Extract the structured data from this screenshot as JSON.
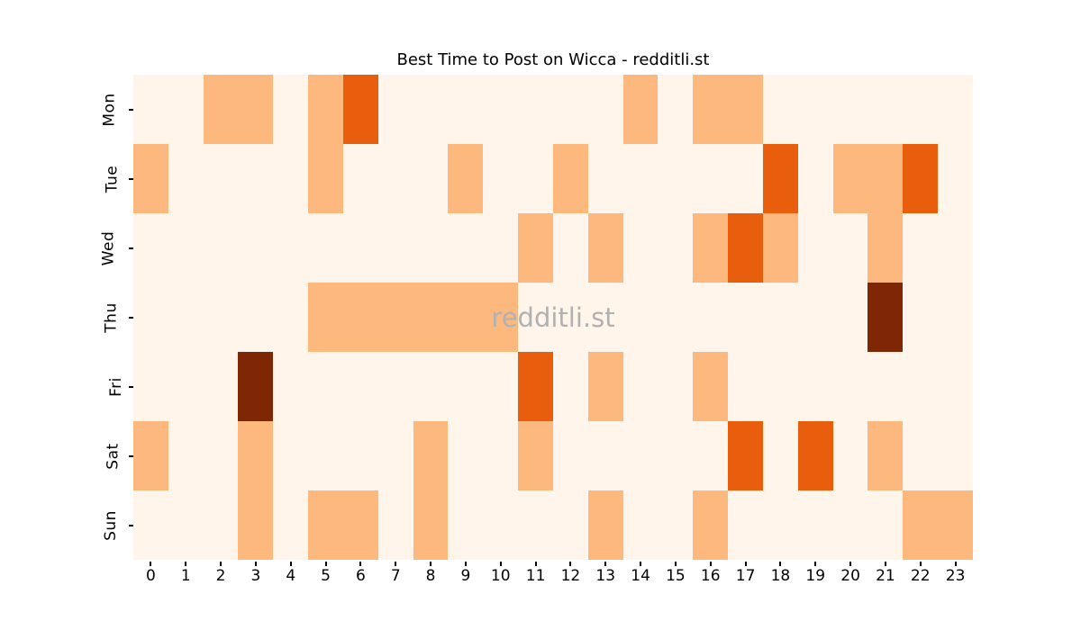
{
  "title": "Best Time to Post on Wicca - redditli.st",
  "watermark": "redditli.st",
  "chart_data": {
    "type": "heatmap",
    "title": "Best Time to Post on Wicca - redditli.st",
    "xlabel": "",
    "ylabel": "",
    "x": [
      "0",
      "1",
      "2",
      "3",
      "4",
      "5",
      "6",
      "7",
      "8",
      "9",
      "10",
      "11",
      "12",
      "13",
      "14",
      "15",
      "16",
      "17",
      "18",
      "19",
      "20",
      "21",
      "22",
      "23"
    ],
    "y": [
      "Mon",
      "Tue",
      "Wed",
      "Thu",
      "Fri",
      "Sat",
      "Sun"
    ],
    "values": [
      [
        0,
        0,
        1,
        1,
        0,
        1,
        2,
        0,
        0,
        0,
        0,
        0,
        0,
        0,
        1,
        0,
        1,
        1,
        0,
        0,
        0,
        0,
        0,
        0
      ],
      [
        1,
        0,
        0,
        0,
        0,
        1,
        0,
        0,
        0,
        1,
        0,
        0,
        1,
        0,
        0,
        0,
        0,
        0,
        2,
        0,
        1,
        1,
        2,
        0
      ],
      [
        0,
        0,
        0,
        0,
        0,
        0,
        0,
        0,
        0,
        0,
        0,
        1,
        0,
        1,
        0,
        0,
        1,
        2,
        1,
        0,
        0,
        1,
        0,
        0
      ],
      [
        0,
        0,
        0,
        0,
        0,
        1,
        1,
        1,
        1,
        1,
        1,
        0,
        0,
        0,
        0,
        0,
        0,
        0,
        0,
        0,
        0,
        3,
        0,
        0
      ],
      [
        0,
        0,
        0,
        3,
        0,
        0,
        0,
        0,
        0,
        0,
        0,
        2,
        0,
        1,
        0,
        0,
        1,
        0,
        0,
        0,
        0,
        0,
        0,
        0
      ],
      [
        1,
        0,
        0,
        1,
        0,
        0,
        0,
        0,
        1,
        0,
        0,
        1,
        0,
        0,
        0,
        0,
        0,
        2,
        0,
        2,
        0,
        1,
        0,
        0
      ],
      [
        0,
        0,
        0,
        1,
        0,
        1,
        1,
        0,
        1,
        0,
        0,
        0,
        0,
        1,
        0,
        0,
        1,
        0,
        0,
        0,
        0,
        0,
        1,
        1
      ]
    ],
    "value_range": [
      0,
      3
    ],
    "colormap": "Oranges",
    "colors": {
      "0": "#fff5eb",
      "1": "#fdb97d",
      "2": "#e95e0d",
      "3": "#7f2704"
    },
    "legend": "none",
    "grid": false
  }
}
